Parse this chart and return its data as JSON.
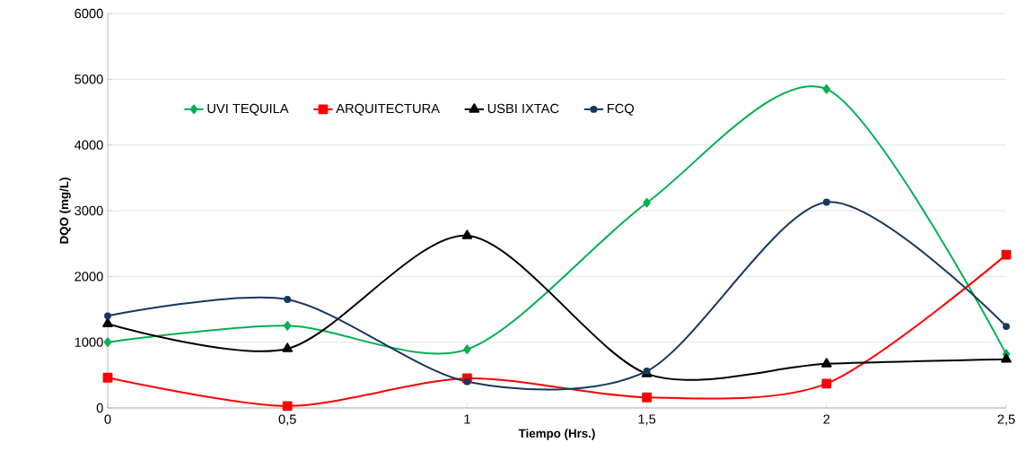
{
  "chart_data": {
    "type": "line",
    "xlabel": "Tiempo (Hrs.)",
    "ylabel": "DQO (mg/L)",
    "x": [
      0,
      0.5,
      1,
      1.5,
      2,
      2.5
    ],
    "series": [
      {
        "name": "UVI TEQUILA",
        "color": "#00b050",
        "marker": "diamond",
        "values": [
          1000,
          1250,
          890,
          3120,
          4850,
          820
        ]
      },
      {
        "name": "ARQUITECTURA",
        "color": "#ff0000",
        "marker": "square",
        "values": [
          460,
          30,
          450,
          160,
          370,
          2330
        ]
      },
      {
        "name": "USBI IXTAC",
        "color": "#000000",
        "marker": "triangle",
        "values": [
          1280,
          900,
          2620,
          520,
          670,
          740
        ]
      },
      {
        "name": "FCQ",
        "color": "#17375e",
        "marker": "circle",
        "values": [
          1400,
          1650,
          400,
          560,
          3130,
          1240
        ]
      }
    ],
    "xlim": [
      0,
      2.5
    ],
    "xticks": [
      0,
      {
        "value": 0.5,
        "label": "0,5"
      },
      1,
      {
        "value": 1.5,
        "label": "1,5"
      },
      2,
      {
        "value": 2.5,
        "label": "2,5"
      }
    ],
    "ylim": [
      0,
      6000
    ],
    "yticks": [
      0,
      1000,
      2000,
      3000,
      4000,
      5000,
      6000
    ],
    "grid": "y",
    "legend": "top left",
    "line_style": "solid"
  }
}
